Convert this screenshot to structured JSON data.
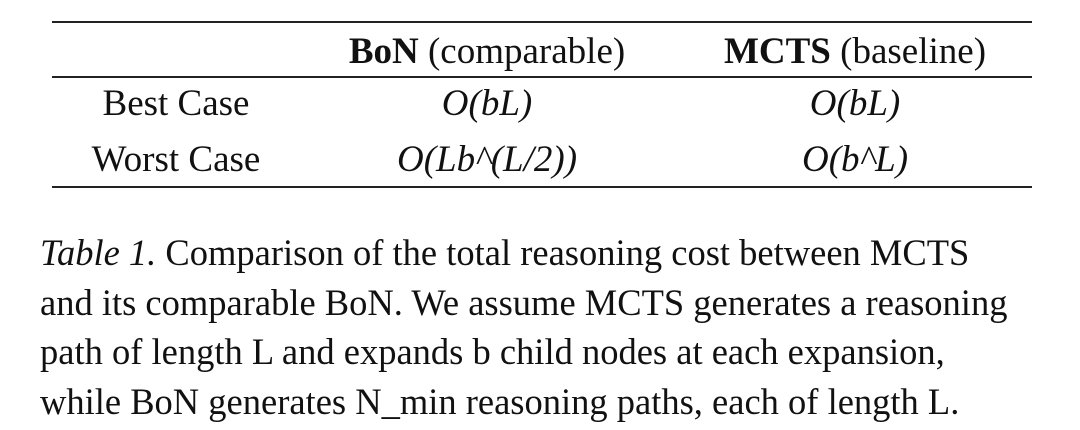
{
  "table": {
    "headers": [
      {
        "bold": "",
        "rest": ""
      },
      {
        "bold": "BoN",
        "rest": " (comparable)"
      },
      {
        "bold": "MCTS",
        "rest": " (baseline)"
      }
    ],
    "rows": [
      {
        "label": "Best Case",
        "bon": "O(bL)",
        "mcts": "O(bL)"
      },
      {
        "label": "Worst Case",
        "bon": "O(Lb^(L/2))",
        "mcts": "O(b^L)"
      }
    ]
  },
  "caption": {
    "label": "Table 1.",
    "lines": [
      " Comparison of the total reasoning cost between MCTS",
      "and its comparable BoN. We assume MCTS generates a reasoning",
      "path of length L and expands b child nodes at each expansion,",
      "while BoN generates N_min reasoning paths, each of length L."
    ]
  }
}
